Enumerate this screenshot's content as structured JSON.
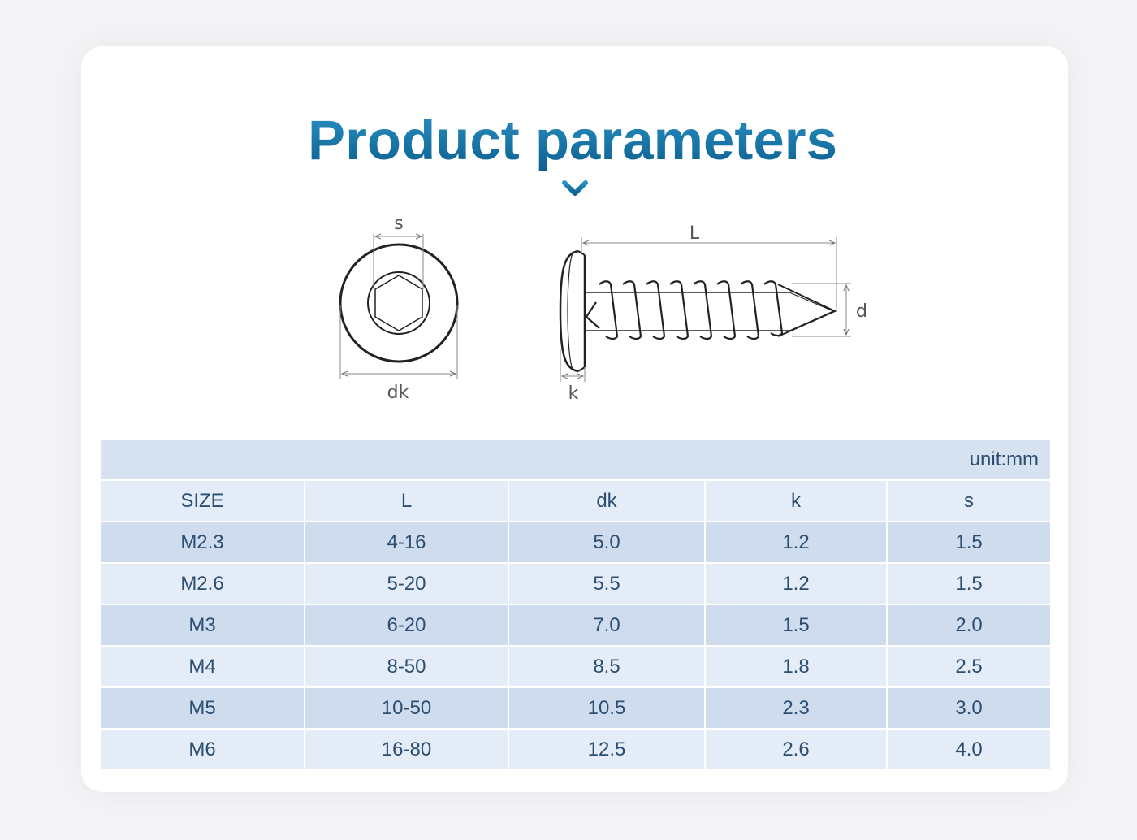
{
  "title": "Product parameters",
  "colors": {
    "title_gradient_top": "#2a92c4",
    "title_gradient_bottom": "#0b5e8e",
    "table_text": "#2c4e72",
    "row_dark": "#cfdcee",
    "row_light": "#e4ecf7"
  },
  "icons": {
    "chevron": "chevron-down-icon"
  },
  "drawing_labels": {
    "s": "s",
    "dk": "dk",
    "L": "L",
    "d": "d",
    "k": "k"
  },
  "table": {
    "unit": "unit:mm",
    "headers": [
      "SIZE",
      "L",
      "dk",
      "k",
      "s"
    ],
    "rows": [
      [
        "M2.3",
        "4-16",
        "5.0",
        "1.2",
        "1.5"
      ],
      [
        "M2.6",
        "5-20",
        "5.5",
        "1.2",
        "1.5"
      ],
      [
        "M3",
        "6-20",
        "7.0",
        "1.5",
        "2.0"
      ],
      [
        "M4",
        "8-50",
        "8.5",
        "1.8",
        "2.5"
      ],
      [
        "M5",
        "10-50",
        "10.5",
        "2.3",
        "3.0"
      ],
      [
        "M6",
        "16-80",
        "12.5",
        "2.6",
        "4.0"
      ]
    ]
  }
}
